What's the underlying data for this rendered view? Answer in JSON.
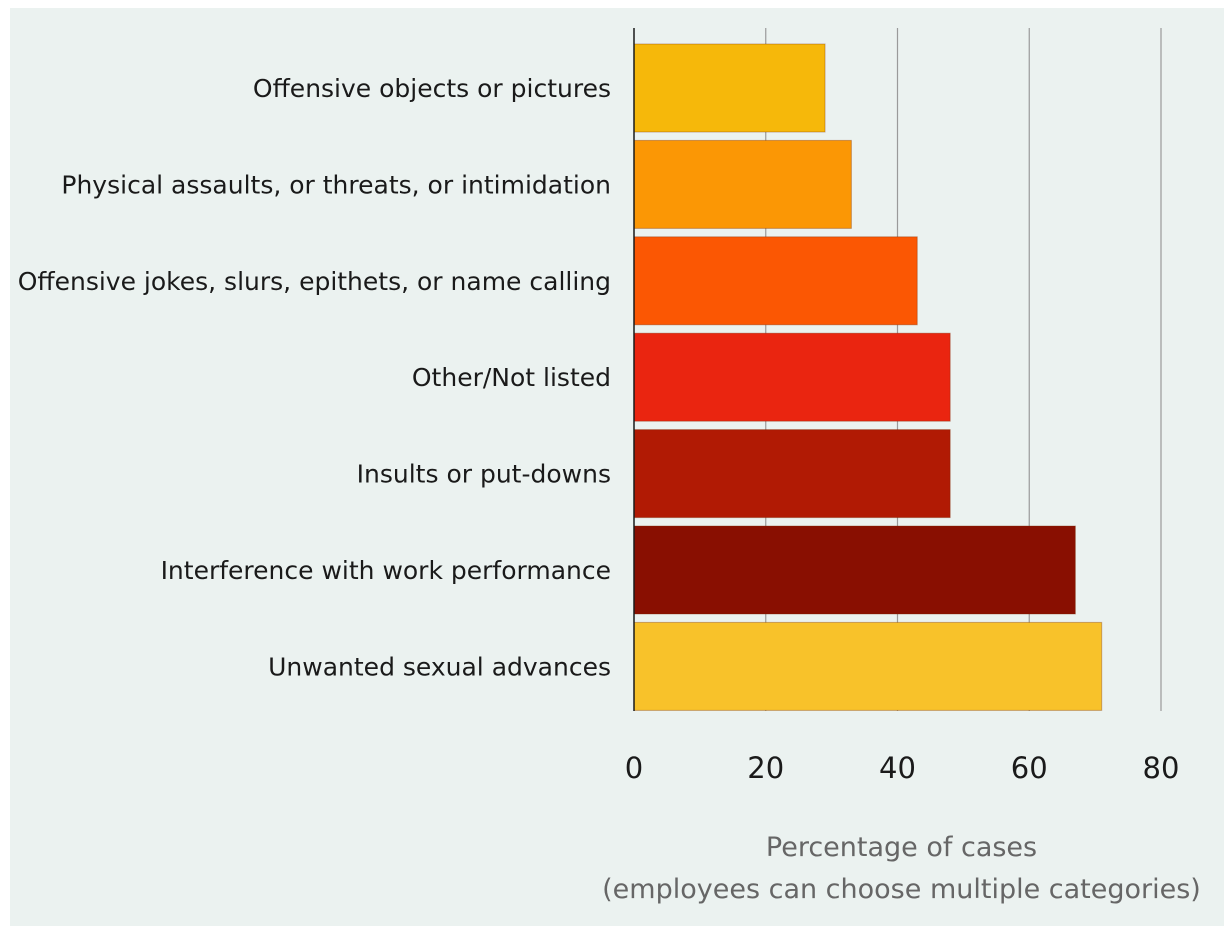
{
  "chart_data": {
    "type": "bar",
    "orientation": "horizontal",
    "categories": [
      "Offensive objects or pictures",
      "Physical assaults, or threats, or intimidation",
      "Offensive jokes, slurs, epithets, or name calling",
      "Other/Not listed",
      "Insults or put-downs",
      "Interference with work performance",
      "Unwanted sexual advances"
    ],
    "values": [
      29,
      33,
      43,
      48,
      48,
      67,
      71
    ],
    "colors": [
      "#f6b80a",
      "#fb9705",
      "#fb5703",
      "#ea2510",
      "#b11a04",
      "#890f01",
      "#f8c22a"
    ],
    "xlim": [
      0,
      80
    ],
    "xticks": [
      "0",
      "20",
      "40",
      "60",
      "80"
    ],
    "xlabel_line1": "Percentage of cases",
    "xlabel_line2": "(employees can choose multiple categories)",
    "grid": true
  }
}
